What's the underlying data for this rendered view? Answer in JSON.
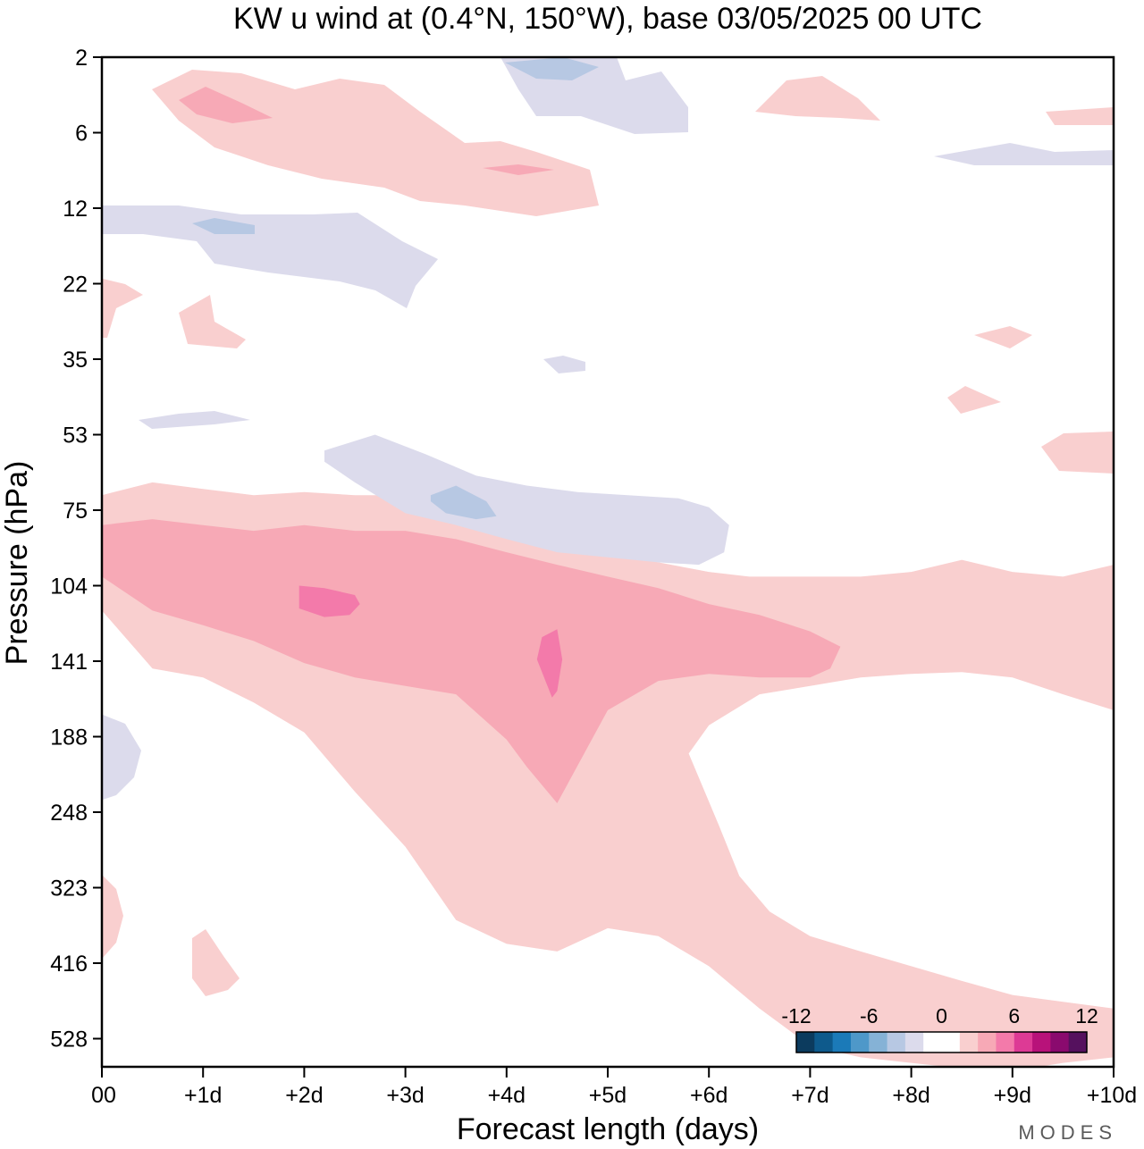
{
  "chart_data": {
    "type": "heatmap",
    "title": "KW u wind at (0.4°N, 150°W),  base 03/05/2025  00 UTC",
    "xlabel": "Forecast length (days)",
    "ylabel": "Pressure (hPa)",
    "x_ticks": [
      "00",
      "+1d",
      "+2d",
      "+3d",
      "+4d",
      "+5d",
      "+6d",
      "+7d",
      "+8d",
      "+9d",
      "+10d"
    ],
    "xlim": [
      0,
      10
    ],
    "y_ticks": [
      "2",
      "6",
      "12",
      "22",
      "35",
      "53",
      "75",
      "104",
      "141",
      "188",
      "248",
      "323",
      "416",
      "528"
    ],
    "y_scale": "pressure levels (top = 2 hPa, bottom ≈ 600 hPa)",
    "colorbar": {
      "labels": [
        "-12",
        "-6",
        "0",
        "6",
        "12"
      ],
      "label_values": [
        -12,
        -6,
        0,
        6,
        12
      ],
      "interval": 1.5,
      "colors": [
        "#0c3b5e",
        "#0e5a8c",
        "#1b7ab8",
        "#4e98c9",
        "#85b2d6",
        "#b7c8e3",
        "#dcdbec",
        "#ffffff",
        "#ffffff",
        "#f9cfcf",
        "#f7a9b6",
        "#f37aaa",
        "#dd3a95",
        "#b8127a",
        "#8a0a6e",
        "#55115e"
      ]
    },
    "regions": [
      {
        "level": 1.5,
        "x": [
          0.0,
          0.5,
          1.0,
          1.5,
          2.0,
          2.5,
          3.0,
          3.5,
          4.0,
          4.5,
          5.0,
          5.5,
          6.0,
          6.4,
          6.75,
          7.0,
          7.5,
          8.0,
          8.5,
          9.0,
          9.5,
          10.0,
          10.0,
          9.5,
          9.0,
          8.5,
          8.0,
          7.5,
          7.0,
          6.5,
          6.0,
          5.8,
          6.1,
          6.3,
          6.6,
          7.0,
          7.5,
          8.0,
          8.5,
          9.0,
          9.5,
          10.0,
          10.0,
          9.5,
          9.0,
          8.5,
          8.0,
          7.5,
          7.0,
          6.5,
          6.0,
          5.5,
          5.0,
          4.5,
          4.0,
          3.5,
          3.0,
          2.5,
          2.0,
          1.5,
          1.0,
          0.5,
          0.0
        ],
        "y": [
          70,
          66,
          68,
          70,
          69,
          70,
          70,
          74,
          80,
          85,
          90,
          94,
          98,
          100,
          100,
          100,
          100,
          98,
          93,
          98,
          100,
          95,
          170,
          160,
          150,
          147,
          148,
          150,
          155,
          160,
          180,
          200,
          260,
          310,
          350,
          380,
          400,
          420,
          440,
          460,
          470,
          480,
          560,
          570,
          585,
          580,
          570,
          560,
          540,
          480,
          420,
          380,
          370,
          400,
          390,
          360,
          280,
          230,
          185,
          165,
          150,
          145,
          115
        ],
        "hex": "#f9cfcf"
      },
      {
        "level": 3.0,
        "x": [
          0.0,
          0.5,
          1.0,
          1.5,
          2.0,
          2.5,
          3.0,
          3.5,
          4.0,
          4.5,
          5.0,
          5.5,
          6.0,
          6.5,
          7.0,
          7.3,
          7.2,
          7.0,
          6.5,
          6.0,
          5.5,
          5.0,
          4.5,
          4.2,
          4.0,
          3.5,
          3.0,
          2.5,
          2.0,
          1.5,
          1.0,
          0.5,
          0.0
        ],
        "y": [
          80,
          78,
          80,
          82,
          80,
          82,
          82,
          85,
          90,
          95,
          100,
          105,
          112,
          117,
          125,
          133,
          145,
          150,
          150,
          148,
          152,
          170,
          240,
          210,
          190,
          160,
          155,
          150,
          142,
          130,
          122,
          115,
          100
        ],
        "hex": "#f7a9b6"
      },
      {
        "level": 4.5,
        "x": [
          1.95,
          2.2,
          2.5,
          2.55,
          2.45,
          2.2,
          1.95
        ],
        "y": [
          104,
          105,
          108,
          112,
          117,
          118,
          114
        ],
        "hex": "#f37aaa"
      },
      {
        "level": 4.5,
        "x": [
          4.35,
          4.5,
          4.55,
          4.5,
          4.45,
          4.3
        ],
        "y": [
          128,
          124,
          140,
          158,
          162,
          140
        ],
        "hex": "#f37aaa"
      },
      {
        "level": -1.5,
        "x": [
          2.2,
          2.7,
          3.2,
          3.7,
          4.2,
          4.7,
          5.2,
          5.7,
          6.0,
          6.2,
          6.15,
          5.9,
          5.5,
          5.0,
          4.5,
          4.0,
          3.5,
          3.0,
          2.5,
          2.2
        ],
        "y": [
          57,
          53,
          58,
          64,
          67,
          69,
          70,
          71,
          74,
          80,
          90,
          95,
          94,
          92,
          90,
          85,
          80,
          76,
          66,
          60
        ],
        "hex": "#dcdbec"
      },
      {
        "level": -3.0,
        "x": [
          3.25,
          3.5,
          3.8,
          3.9,
          3.7,
          3.4,
          3.25
        ],
        "y": [
          70,
          67,
          72,
          77,
          78,
          76,
          72
        ],
        "hex": "#b7c8e3"
      }
    ]
  },
  "brand": "MODES"
}
